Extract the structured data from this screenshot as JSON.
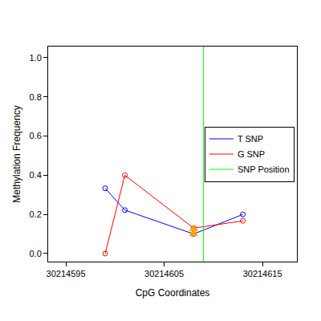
{
  "chart_data": {
    "type": "line",
    "x_label": "CpG Coordinates",
    "y_label": "Methylation Frequency",
    "xlim": [
      30214593.2,
      30214618.5
    ],
    "xticks": [
      30214595,
      30214605,
      30214615
    ],
    "ylim": [
      -0.041,
      1.057
    ],
    "yticks": [
      {
        "value": 0,
        "label": "0.0"
      },
      {
        "value": 0.2,
        "label": "0.2"
      },
      {
        "value": 0.4,
        "label": "0.4"
      },
      {
        "value": 0.6,
        "label": "0.6"
      },
      {
        "value": 0.8,
        "label": "0.8"
      },
      {
        "value": 1.0,
        "label": "1.0"
      }
    ],
    "grid": false,
    "legend": "right",
    "series": [
      {
        "name": "T SNP",
        "color": "#0000ff",
        "type": "line",
        "marker": "open-circle",
        "x": [
          30214599,
          30214601,
          30214608,
          30214613
        ],
        "values": [
          0.333,
          0.222,
          0.1,
          0.2
        ]
      },
      {
        "name": "G SNP",
        "color": "#ff0000",
        "type": "line",
        "marker": "open-circle",
        "x": [
          30214599,
          30214601,
          30214608,
          30214613
        ],
        "values": [
          0.0,
          0.4,
          0.13,
          0.167
        ]
      },
      {
        "color": "#ffa500",
        "type": "scatter",
        "marker": "triangle",
        "x": [
          30214608,
          30214608
        ],
        "values": [
          0.1,
          0.125
        ]
      },
      {
        "name": "SNP Position",
        "color": "#00ff00",
        "type": "vline",
        "x": [
          30214609
        ]
      }
    ]
  }
}
